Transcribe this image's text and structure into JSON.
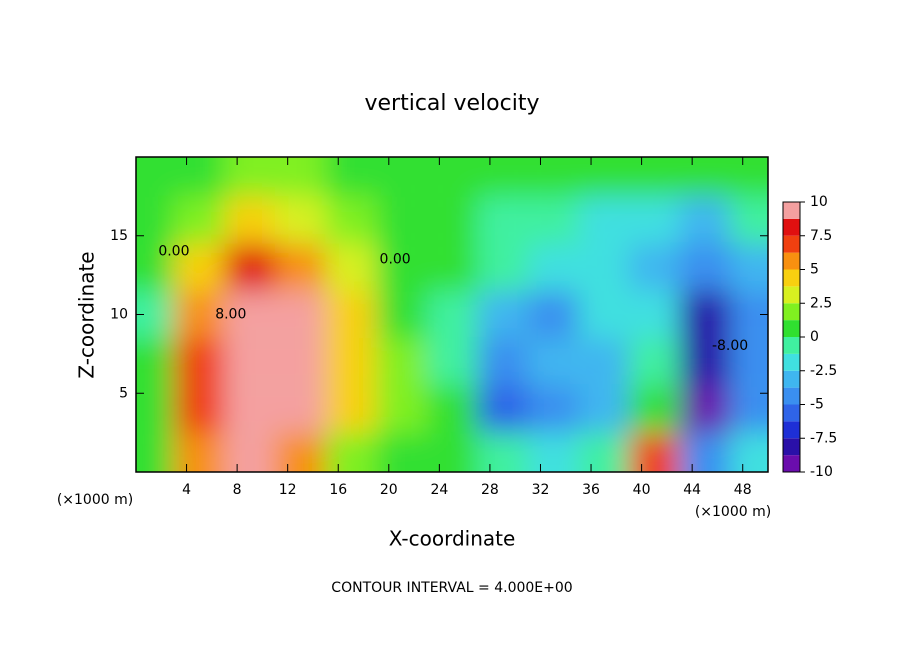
{
  "chart_data": {
    "type": "contour",
    "title": "vertical velocity",
    "x_label": "X-coordinate",
    "y_label": "Z-coordinate",
    "x_unit_left": "(×1000 m)",
    "x_unit_right": "(×1000 m)",
    "footnote": "CONTOUR INTERVAL = 4.000E+00",
    "xlim": [
      0,
      50
    ],
    "ylim": [
      0,
      20
    ],
    "xticks": [
      4,
      8,
      12,
      16,
      20,
      24,
      28,
      32,
      36,
      40,
      44,
      48
    ],
    "yticks": [
      5,
      10,
      15
    ],
    "x": [
      1,
      5,
      9,
      13,
      17,
      21,
      25,
      29,
      33,
      37,
      41,
      45,
      49
    ],
    "z": [
      1,
      4,
      7,
      10,
      13,
      16,
      19
    ],
    "values": [
      [
        0,
        5,
        9,
        6,
        2,
        1,
        0,
        -1,
        -2,
        -1,
        7,
        -5,
        -2
      ],
      [
        0,
        7,
        11,
        9,
        4,
        2,
        0,
        -6,
        -4,
        -3,
        0,
        -9,
        -4
      ],
      [
        0,
        7,
        10,
        11,
        4,
        2,
        -1,
        -5,
        -3,
        -3,
        -1,
        -8,
        -5
      ],
      [
        -1,
        6,
        11,
        10,
        4,
        1,
        -1,
        -3,
        -4,
        -2,
        -2,
        -8,
        -4
      ],
      [
        0,
        4,
        8,
        6,
        3,
        1,
        0,
        -1,
        -2,
        -2,
        -3,
        -5,
        -3
      ],
      [
        1,
        2,
        4,
        3,
        2,
        0,
        0,
        -1,
        -1,
        -2,
        -2,
        -3,
        -1
      ],
      [
        1,
        1,
        2,
        2,
        1,
        1,
        0,
        0,
        0,
        0,
        0,
        0,
        0
      ]
    ],
    "colorbar": {
      "lim": [
        -10,
        10
      ],
      "ticks": [
        10,
        7.5,
        5,
        2.5,
        0,
        -2.5,
        -5,
        -7.5,
        -10
      ],
      "colors": [
        "#6a0dad",
        "#2a10a8",
        "#1e2fd6",
        "#2f64e8",
        "#3a8ff0",
        "#3fb6f0",
        "#40e0e0",
        "#40f0a0",
        "#30e030",
        "#80f020",
        "#d8f020",
        "#f8d010",
        "#f89010",
        "#f04010",
        "#e01010",
        "#f4a0a0"
      ]
    },
    "annotations": [
      {
        "text": "0.00",
        "x": 3,
        "z": 14
      },
      {
        "text": "8.00",
        "x": 7.5,
        "z": 10
      },
      {
        "text": "0.00",
        "x": 20.5,
        "z": 13.5
      },
      {
        "text": "-8.00",
        "x": 47,
        "z": 8
      }
    ]
  }
}
